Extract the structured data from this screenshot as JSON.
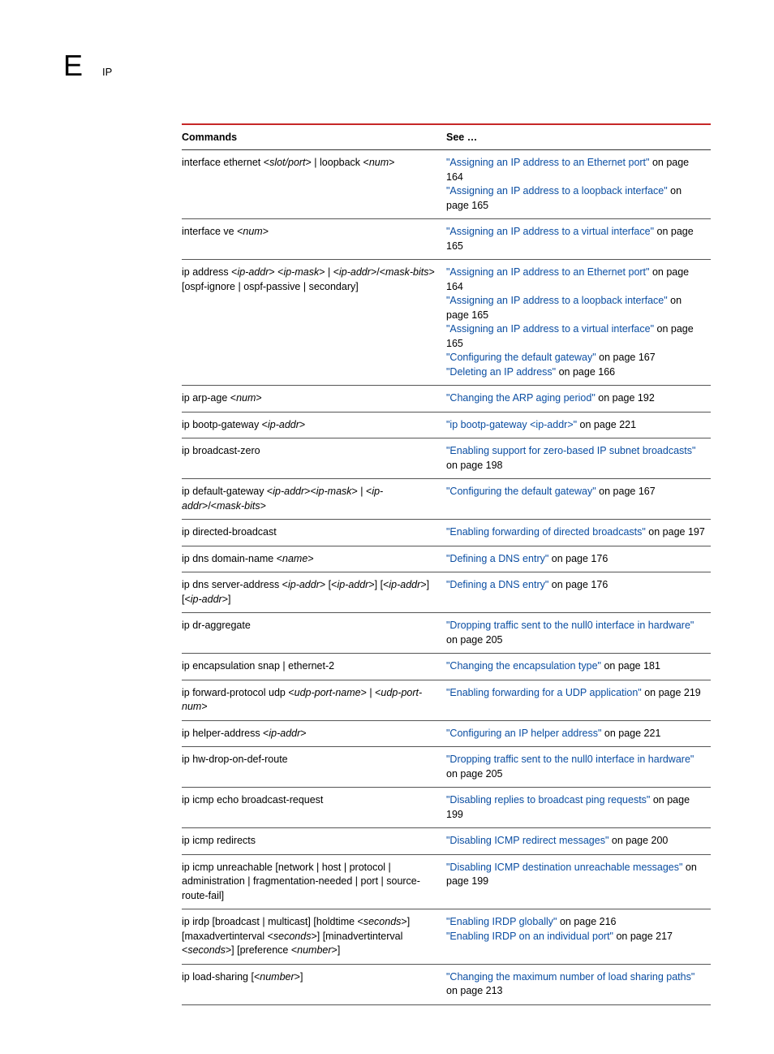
{
  "header": {
    "letter": "E",
    "title": "IP"
  },
  "table": {
    "cols": {
      "command": "Commands",
      "see": "See …"
    },
    "rows": [
      {
        "cmd_html": "interface ethernet <<i>slot/port</i>> | loopback <<i>num</i>>",
        "see": [
          {
            "link": "\"Assigning an IP address to an Ethernet port\"",
            "tail": " on page 164"
          },
          {
            "link": "\"Assigning an IP address to a loopback interface\"",
            "tail": " on page 165"
          }
        ]
      },
      {
        "cmd_html": "interface ve <<i>num</i>>",
        "see": [
          {
            "link": "\"Assigning an IP address to a virtual interface\"",
            "tail": " on page 165"
          }
        ]
      },
      {
        "cmd_html": "ip address <<i>ip-addr</i>> <<i>ip-mask</i>> | <<i>ip-addr</i>>/<<i>mask-bits</i>> [ospf-ignore | ospf-passive | secondary]",
        "see": [
          {
            "link": "\"Assigning an IP address to an Ethernet port\"",
            "tail": " on page 164"
          },
          {
            "link": "\"Assigning an IP address to a loopback interface\"",
            "tail": " on page 165"
          },
          {
            "link": "\"Assigning an IP address to a virtual interface\"",
            "tail": " on page 165"
          },
          {
            "link": "\"Configuring the default gateway\"",
            "tail": " on page 167"
          },
          {
            "link": "\"Deleting an IP address\"",
            "tail": " on page 166"
          }
        ]
      },
      {
        "cmd_html": "ip arp-age <<i>num</i>>",
        "see": [
          {
            "link": "\"Changing the ARP aging period\"",
            "tail": " on page 192"
          }
        ]
      },
      {
        "cmd_html": "ip bootp-gateway <<i>ip-addr</i>>",
        "see": [
          {
            "link": "\"ip bootp-gateway <ip-addr>\"",
            "tail": " on page 221"
          }
        ]
      },
      {
        "cmd_html": "ip broadcast-zero",
        "see": [
          {
            "link": "\"Enabling support for zero-based IP subnet broadcasts\"",
            "tail": " on page 198"
          }
        ]
      },
      {
        "cmd_html": "ip default-gateway <<i>ip-addr</i>><<i>ip-mask</i>> | <<i>ip-addr</i>>/<<i>mask-bits</i>>",
        "see": [
          {
            "link": "\"Configuring the default gateway\"",
            "tail": " on page 167"
          }
        ]
      },
      {
        "cmd_html": "ip directed-broadcast",
        "see": [
          {
            "link": "\"Enabling forwarding of directed broadcasts\"",
            "tail": " on page 197"
          }
        ]
      },
      {
        "cmd_html": "ip dns domain-name <<i>name</i>>",
        "see": [
          {
            "link": "\"Defining a DNS entry\"",
            "tail": " on page 176"
          }
        ]
      },
      {
        "cmd_html": "ip dns server-address <<i>ip-addr</i>> [<<i>ip-addr</i>>] [<<i>ip-addr</i>>] [<<i>ip-addr</i>>]",
        "see": [
          {
            "link": "\"Defining a DNS entry\"",
            "tail": " on page 176"
          }
        ]
      },
      {
        "cmd_html": "ip dr-aggregate",
        "see": [
          {
            "link": "\"Dropping traffic sent to the null0 interface in hardware\"",
            "tail": " on page 205"
          }
        ]
      },
      {
        "cmd_html": "ip encapsulation snap | ethernet-2",
        "see": [
          {
            "link": "\"Changing the encapsulation type\"",
            "tail": " on page 181"
          }
        ]
      },
      {
        "cmd_html": "ip forward-protocol udp <<i>udp-port-name</i>> | <<i>udp-port-num</i>>",
        "see": [
          {
            "link": "\"Enabling forwarding for a UDP application\"",
            "tail": " on page 219"
          }
        ]
      },
      {
        "cmd_html": "ip helper-address <<i>ip-addr</i>>",
        "see": [
          {
            "link": "\"Configuring an IP helper address\"",
            "tail": " on page 221"
          }
        ]
      },
      {
        "cmd_html": "ip hw-drop-on-def-route",
        "see": [
          {
            "link": "\"Dropping traffic sent to the null0 interface in hardware\"",
            "tail": " on page 205"
          }
        ]
      },
      {
        "cmd_html": "ip icmp echo broadcast-request",
        "see": [
          {
            "link": "\"Disabling replies to broadcast ping requests\"",
            "tail": " on page 199"
          }
        ]
      },
      {
        "cmd_html": "ip icmp redirects",
        "see": [
          {
            "link": "\"Disabling ICMP redirect messages\"",
            "tail": " on page 200"
          }
        ]
      },
      {
        "cmd_html": "ip icmp unreachable [network | host | protocol | administration | fragmentation-needed | port | source-route-fail]",
        "see": [
          {
            "link": "\"Disabling ICMP destination unreachable messages\"",
            "tail": " on page 199"
          }
        ]
      },
      {
        "cmd_html": "ip irdp [broadcast | multicast] [holdtime <<i>seconds</i>>] [maxadvertinterval <<i>seconds</i>>] [minadvertinterval <<i>seconds</i>>] [preference <<i>number</i>>]",
        "see": [
          {
            "link": "\"Enabling IRDP globally\"",
            "tail": " on page 216"
          },
          {
            "link": "\"Enabling IRDP on an individual port\"",
            "tail": " on page 217"
          }
        ]
      },
      {
        "cmd_html": "ip load-sharing [<<i>number</i>>]",
        "see": [
          {
            "link": "\"Changing the maximum number of load sharing paths\"",
            "tail": " on page 213"
          }
        ]
      }
    ]
  }
}
